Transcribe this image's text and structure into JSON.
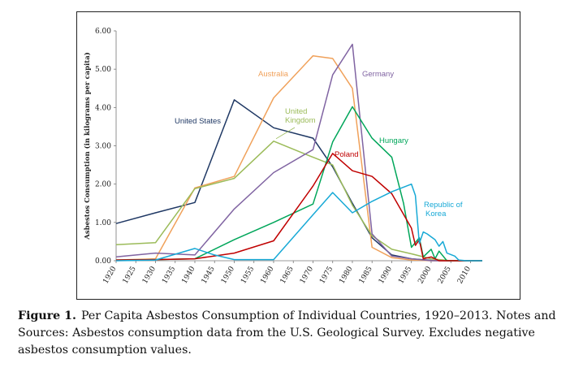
{
  "chart_data": {
    "type": "line",
    "title": "",
    "xlabel": "",
    "ylabel": "Asbestos Consumption (in kilograms per capita)",
    "xlim": [
      1920,
      2013
    ],
    "ylim": [
      0,
      6
    ],
    "yticks": [
      "0.00",
      "1.00",
      "2.00",
      "3.00",
      "4.00",
      "5.00",
      "6.00"
    ],
    "xticks": [
      "1920",
      "1925",
      "1930",
      "1935",
      "1940",
      "1945",
      "1950",
      "1955",
      "1960",
      "1965",
      "1970",
      "1975",
      "1980",
      "1985",
      "1990",
      "1995",
      "2000",
      "2005",
      "2010"
    ],
    "grid": false,
    "legend": "labels-on-lines",
    "series": [
      {
        "name": "United States",
        "color": "#1f3864",
        "x": [
          1920,
          1930,
          1940,
          1950,
          1960,
          1970,
          1975,
          1980,
          1985,
          1990,
          1995,
          2000,
          2005,
          2013
        ],
        "y": [
          0.97,
          1.25,
          1.52,
          4.2,
          3.47,
          3.2,
          2.45,
          1.5,
          0.6,
          0.15,
          0.05,
          0.01,
          0.0,
          0.0
        ]
      },
      {
        "name": "Australia",
        "color": "#f0a15a",
        "x": [
          1920,
          1930,
          1940,
          1950,
          1960,
          1970,
          1975,
          1980,
          1985,
          1990,
          1995,
          2000,
          2005,
          2013
        ],
        "y": [
          0.02,
          0.05,
          1.9,
          2.2,
          4.25,
          5.35,
          5.28,
          4.5,
          0.35,
          0.08,
          0.02,
          0.0,
          0.0,
          0.0
        ]
      },
      {
        "name": "United Kingdom",
        "color": "#9bbb59",
        "x": [
          1920,
          1930,
          1940,
          1950,
          1960,
          1970,
          1975,
          1980,
          1985,
          1990,
          1995,
          2000,
          2005,
          2013
        ],
        "y": [
          0.42,
          0.47,
          1.88,
          2.15,
          3.12,
          2.7,
          2.5,
          1.45,
          0.65,
          0.3,
          0.18,
          0.05,
          0.0,
          0.0
        ]
      },
      {
        "name": "Germany",
        "color": "#8064a2",
        "x": [
          1920,
          1930,
          1940,
          1950,
          1960,
          1970,
          1975,
          1980,
          1985,
          1990,
          1995,
          2000,
          2005,
          2013
        ],
        "y": [
          0.1,
          0.2,
          0.15,
          1.35,
          2.3,
          2.9,
          4.85,
          5.65,
          0.7,
          0.12,
          0.05,
          0.0,
          0.0,
          0.0
        ]
      },
      {
        "name": "Hungary",
        "color": "#00a65a",
        "x": [
          1920,
          1930,
          1940,
          1950,
          1960,
          1970,
          1975,
          1980,
          1985,
          1990,
          1993,
          1995,
          1997,
          1998,
          2000,
          2001,
          2002,
          2004,
          2013
        ],
        "y": [
          0.02,
          0.03,
          0.05,
          0.55,
          1.0,
          1.48,
          3.1,
          4.02,
          3.2,
          2.7,
          1.5,
          0.35,
          0.6,
          0.1,
          0.3,
          0.05,
          0.25,
          0.0,
          0.0
        ]
      },
      {
        "name": "Poland",
        "color": "#c00000",
        "x": [
          1920,
          1930,
          1940,
          1950,
          1960,
          1970,
          1975,
          1980,
          1985,
          1990,
          1995,
          1996,
          1997,
          1998,
          2000,
          2002,
          2013
        ],
        "y": [
          0.02,
          0.03,
          0.05,
          0.2,
          0.52,
          1.95,
          2.8,
          2.35,
          2.2,
          1.75,
          0.85,
          0.4,
          0.55,
          0.05,
          0.1,
          0.0,
          0.0
        ]
      },
      {
        "name": "Republic of Korea",
        "color": "#17a9d6",
        "x": [
          1920,
          1930,
          1940,
          1945,
          1950,
          1960,
          1970,
          1975,
          1980,
          1985,
          1990,
          1995,
          1996,
          1997,
          1998,
          1999,
          2001,
          2002,
          2003,
          2004,
          2006,
          2007,
          2009,
          2010,
          2013
        ],
        "y": [
          0.0,
          0.02,
          0.32,
          0.15,
          0.03,
          0.03,
          1.2,
          1.78,
          1.25,
          1.55,
          1.8,
          2.0,
          1.7,
          0.45,
          0.75,
          0.7,
          0.55,
          0.38,
          0.5,
          0.2,
          0.12,
          0.02,
          0.0,
          0.0,
          0.0
        ]
      }
    ],
    "annotations": [
      {
        "text": "United States",
        "series": "United States"
      },
      {
        "text": "Australia",
        "series": "Australia"
      },
      {
        "text": "United",
        "series": "United Kingdom"
      },
      {
        "text": "Kingdom",
        "series": "United Kingdom"
      },
      {
        "text": "Germany",
        "series": "Germany"
      },
      {
        "text": "Hungary",
        "series": "Hungary"
      },
      {
        "text": "Poland",
        "series": "Poland"
      },
      {
        "text": "Republic of",
        "series": "Republic of Korea"
      },
      {
        "text": "Korea",
        "series": "Republic of Korea"
      }
    ]
  },
  "caption": {
    "label": "Figure 1.",
    "text": "Per Capita Asbestos Consumption of Individual Countries, 1920–2013. Notes and Sources: Asbestos consumption data from the U.S. Geological Survey. Excludes negative asbestos consumption values."
  }
}
